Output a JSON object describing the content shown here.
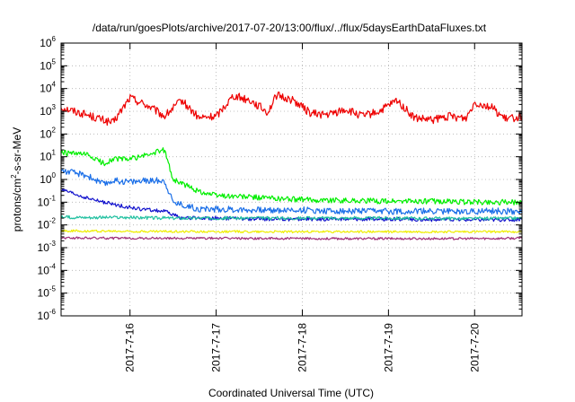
{
  "chart_data": {
    "type": "line",
    "title": "/data/run/goesPlots/archive/2017-07-20/13:00/flux/../flux/5daysEarthDataFluxes.txt",
    "xlabel": "Coordinated Universal Time (UTC)",
    "ylabel_parts": [
      "protons/cm",
      "2",
      "-s-sr-MeV"
    ],
    "x_range_days": [
      15.2,
      20.55
    ],
    "x_ticks": [
      {
        "label": "2017-7-16",
        "day": 16
      },
      {
        "label": "2017-7-17",
        "day": 17
      },
      {
        "label": "2017-7-18",
        "day": 18
      },
      {
        "label": "2017-7-19",
        "day": 19
      },
      {
        "label": "2017-7-20",
        "day": 20
      }
    ],
    "y_scale": "log",
    "y_range": [
      1e-06,
      1000000.0
    ],
    "y_ticks": [
      {
        "base": "10",
        "exp": "6",
        "value": 1000000.0
      },
      {
        "base": "10",
        "exp": "5",
        "value": 100000.0
      },
      {
        "base": "10",
        "exp": "4",
        "value": 10000.0
      },
      {
        "base": "10",
        "exp": "3",
        "value": 1000.0
      },
      {
        "base": "10",
        "exp": "2",
        "value": 100.0
      },
      {
        "base": "10",
        "exp": "1",
        "value": 10.0
      },
      {
        "base": "10",
        "exp": "0",
        "value": 1.0
      },
      {
        "base": "10",
        "exp": "-1",
        "value": 0.1
      },
      {
        "base": "10",
        "exp": "-2",
        "value": 0.01
      },
      {
        "base": "10",
        "exp": "-3",
        "value": 0.001
      },
      {
        "base": "10",
        "exp": "-4",
        "value": 0.0001
      },
      {
        "base": "10",
        "exp": "-5",
        "value": 1e-05
      },
      {
        "base": "10",
        "exp": "-6",
        "value": 1e-06
      }
    ],
    "grid": true,
    "legend": "none",
    "series": [
      {
        "color": "#ee0000",
        "noise": 0.18,
        "x": [
          15.2,
          15.5,
          15.8,
          16.0,
          16.2,
          16.4,
          16.6,
          16.8,
          17.0,
          17.2,
          17.4,
          17.6,
          17.7,
          17.9,
          18.1,
          18.3,
          18.5,
          18.7,
          18.9,
          19.1,
          19.3,
          19.5,
          19.7,
          19.9,
          20.0,
          20.2,
          20.35,
          20.55
        ],
        "y": [
          1500,
          700,
          300,
          4000,
          1800,
          600,
          3000,
          500,
          600,
          5000,
          3000,
          900,
          5000,
          3000,
          800,
          700,
          1200,
          600,
          1000,
          3000,
          500,
          400,
          600,
          500,
          2500,
          1500,
          450,
          600
        ]
      },
      {
        "color": "#00ee00",
        "noise": 0.12,
        "x": [
          15.2,
          15.5,
          15.7,
          15.8,
          16.0,
          16.2,
          16.4,
          16.5,
          16.8,
          17.0,
          17.5,
          18.0,
          18.5,
          19.0,
          19.5,
          20.0,
          20.55
        ],
        "y": [
          15,
          12,
          5,
          8,
          8,
          12,
          20,
          1.0,
          0.3,
          0.2,
          0.16,
          0.13,
          0.12,
          0.11,
          0.11,
          0.1,
          0.1
        ]
      },
      {
        "color": "#1b6fe8",
        "noise": 0.14,
        "x": [
          15.2,
          15.5,
          15.7,
          15.8,
          16.0,
          16.3,
          16.4,
          16.5,
          16.8,
          17.0,
          17.5,
          18.0,
          18.5,
          19.0,
          19.5,
          20.0,
          20.55
        ],
        "y": [
          2.5,
          1.5,
          0.6,
          0.9,
          0.8,
          0.9,
          0.9,
          0.1,
          0.05,
          0.05,
          0.045,
          0.045,
          0.04,
          0.04,
          0.04,
          0.04,
          0.04
        ]
      },
      {
        "color": "#1010cc",
        "noise": 0.08,
        "x": [
          15.2,
          15.5,
          15.8,
          16.1,
          16.4,
          16.6,
          16.8,
          17.0,
          17.5,
          18.0,
          18.5,
          19.0,
          19.5,
          20.0,
          20.55
        ],
        "y": [
          0.35,
          0.15,
          0.08,
          0.05,
          0.04,
          0.02,
          0.02,
          0.02,
          0.018,
          0.018,
          0.018,
          0.018,
          0.017,
          0.017,
          0.017
        ]
      },
      {
        "color": "#20c0a0",
        "noise": 0.07,
        "x": [
          15.2,
          16.0,
          16.5,
          17.0,
          18.0,
          19.0,
          20.0,
          20.55
        ],
        "y": [
          0.022,
          0.021,
          0.02,
          0.02,
          0.02,
          0.02,
          0.019,
          0.02
        ]
      },
      {
        "color": "#eeee00",
        "noise": 0.05,
        "x": [
          15.2,
          16.0,
          17.0,
          18.0,
          19.0,
          20.0,
          20.55
        ],
        "y": [
          0.0055,
          0.0052,
          0.0051,
          0.005,
          0.005,
          0.005,
          0.005
        ]
      },
      {
        "color": "#a0307a",
        "noise": 0.05,
        "x": [
          15.2,
          16.0,
          17.0,
          18.0,
          19.0,
          20.0,
          20.55
        ],
        "y": [
          0.0027,
          0.0026,
          0.0026,
          0.0025,
          0.0025,
          0.0025,
          0.0026
        ]
      }
    ]
  }
}
